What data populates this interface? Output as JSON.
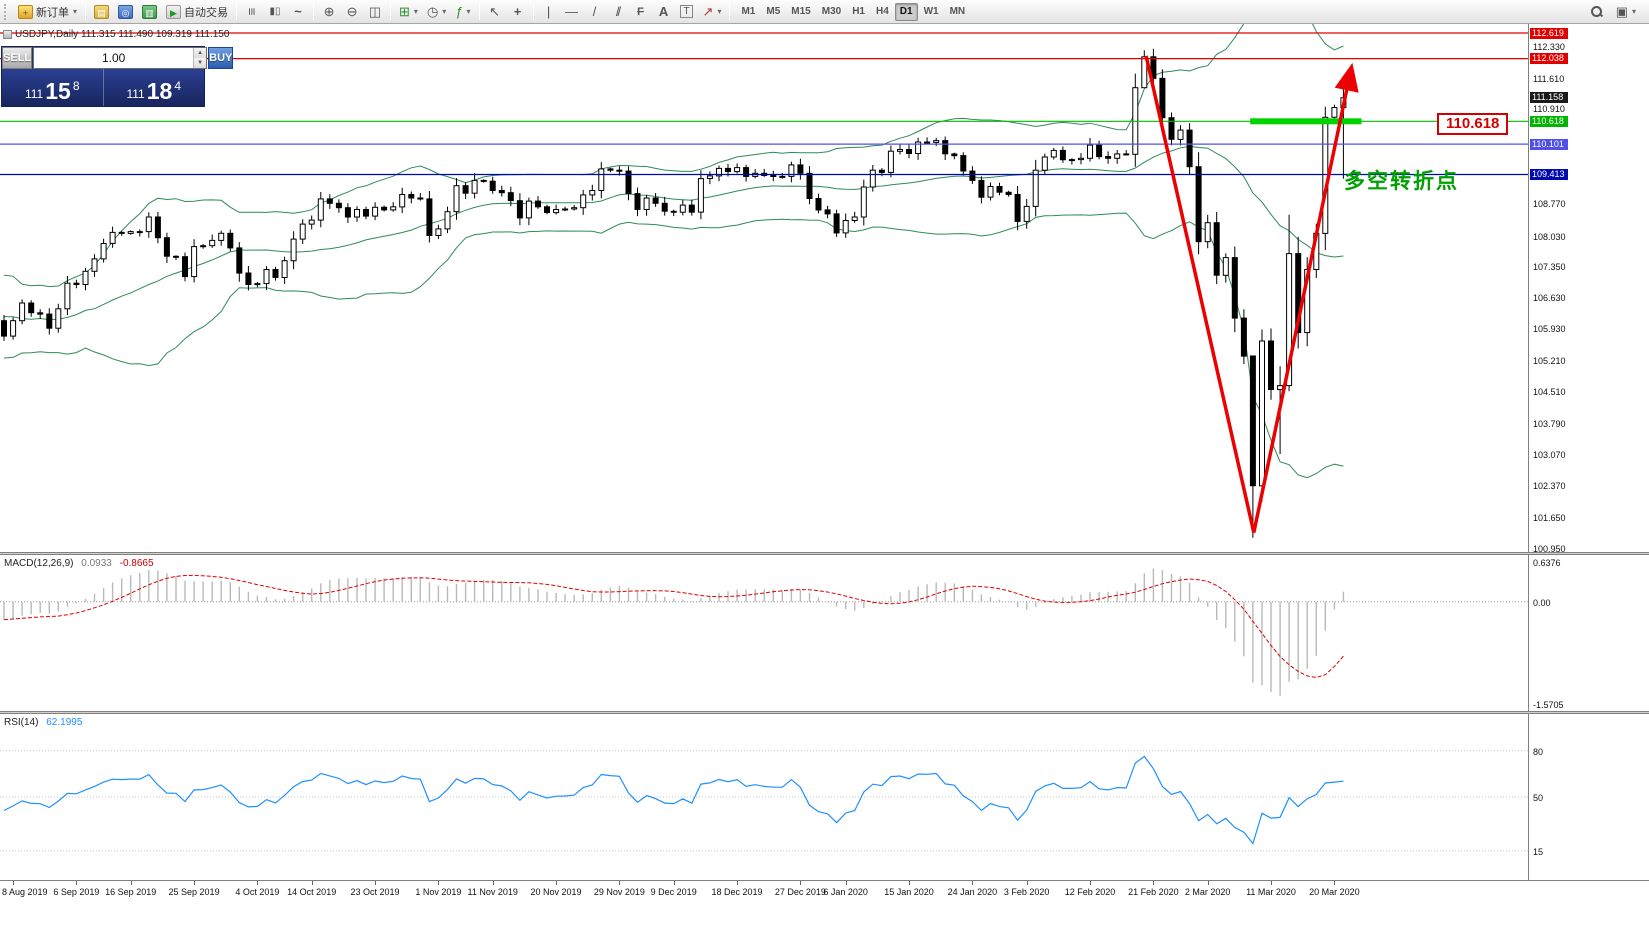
{
  "toolbar": {
    "new_order_label": "新订单",
    "autotrading_label": "自动交易",
    "timeframes": {
      "items": [
        "M1",
        "M5",
        "M15",
        "M30",
        "H1",
        "H4",
        "D1",
        "W1",
        "MN"
      ],
      "active": "D1"
    }
  },
  "chart": {
    "title": "USDJPY,Daily  111.315 111.490 109.319 111.150",
    "symbol": "USDJPY",
    "period": "Daily",
    "open": "111.315",
    "high": "111.490",
    "low": "109.319",
    "close": "111.150"
  },
  "trade_panel": {
    "sell_label": "SELL",
    "buy_label": "BUY",
    "lot": "1.00",
    "sell": {
      "prefix": "111",
      "pips": "15",
      "frac": "8"
    },
    "buy": {
      "prefix": "111",
      "pips": "18",
      "frac": "4"
    }
  },
  "price_axis": {
    "plain": [
      {
        "text": "112.330",
        "price": 112.33
      },
      {
        "text": "111.610",
        "price": 111.61
      },
      {
        "text": "110.910",
        "price": 110.91
      },
      {
        "text": "108.770",
        "price": 108.77
      },
      {
        "text": "108.030",
        "price": 108.03
      },
      {
        "text": "107.350",
        "price": 107.35
      },
      {
        "text": "106.630",
        "price": 106.63
      },
      {
        "text": "105.930",
        "price": 105.93
      },
      {
        "text": "105.210",
        "price": 105.21
      },
      {
        "text": "104.510",
        "price": 104.51
      },
      {
        "text": "103.790",
        "price": 103.79
      },
      {
        "text": "103.070",
        "price": 103.07
      },
      {
        "text": "102.370",
        "price": 102.37
      },
      {
        "text": "101.650",
        "price": 101.65
      },
      {
        "text": "100.950",
        "price": 100.95
      }
    ],
    "boxed": [
      {
        "text": "112.619",
        "price": 112.619,
        "bg": "#e00000"
      },
      {
        "text": "112.038",
        "price": 112.038,
        "bg": "#e00000"
      },
      {
        "text": "111.158",
        "price": 111.158,
        "bg": "#1a1a1a"
      },
      {
        "text": "110.618",
        "price": 110.618,
        "bg": "#00b400"
      },
      {
        "text": "110.101",
        "price": 110.101,
        "bg": "#5050e8"
      },
      {
        "text": "109.413",
        "price": 109.413,
        "bg": "#0008b0"
      }
    ]
  },
  "hlines": [
    {
      "price": 112.619,
      "color": "#e00000"
    },
    {
      "price": 112.038,
      "color": "#e00000"
    },
    {
      "price": 110.618,
      "color": "#00bb00"
    },
    {
      "price": 110.101,
      "color": "#5050e8"
    },
    {
      "price": 109.413,
      "color": "#0008b0"
    }
  ],
  "annotations": {
    "callout": "110.618",
    "cn_text": "多空转折点",
    "highlight": {
      "i1": 137.7,
      "i2": 150,
      "price": 110.618
    },
    "arrow": {
      "pts": [
        [
          126.2,
          112.1
        ],
        [
          138.1,
          101.3
        ],
        [
          148.8,
          111.75
        ]
      ]
    }
  },
  "macd": {
    "label": "MACD(12,26,9)",
    "value_main": "0.0933",
    "value_signal": "-0.8665",
    "axis": [
      "0.6376",
      "0.00",
      "-1.5705"
    ]
  },
  "rsi": {
    "label": "RSI(14)",
    "value": "62.1995",
    "levels": [
      "80",
      "50",
      "15"
    ]
  },
  "date_axis": [
    {
      "text": "8 Aug 2019",
      "i": 1
    },
    {
      "text": "6 Sep 2019",
      "i": 8
    },
    {
      "text": "16 Sep 2019",
      "i": 14
    },
    {
      "text": "25 Sep 2019",
      "i": 21
    },
    {
      "text": "4 Oct 2019",
      "i": 28
    },
    {
      "text": "14 Oct 2019",
      "i": 34
    },
    {
      "text": "23 Oct 2019",
      "i": 41
    },
    {
      "text": "1 Nov 2019",
      "i": 48
    },
    {
      "text": "11 Nov 2019",
      "i": 54
    },
    {
      "text": "20 Nov 2019",
      "i": 61
    },
    {
      "text": "29 Nov 2019",
      "i": 68
    },
    {
      "text": "9 Dec 2019",
      "i": 74
    },
    {
      "text": "18 Dec 2019",
      "i": 81
    },
    {
      "text": "27 Dec 2019",
      "i": 88
    },
    {
      "text": "6 Jan 2020",
      "i": 93
    },
    {
      "text": "15 Jan 2020",
      "i": 100
    },
    {
      "text": "24 Jan 2020",
      "i": 107
    },
    {
      "text": "3 Feb 2020",
      "i": 113
    },
    {
      "text": "12 Feb 2020",
      "i": 120
    },
    {
      "text": "21 Feb 2020",
      "i": 127
    },
    {
      "text": "2 Mar 2020",
      "i": 133
    },
    {
      "text": "11 Mar 2020",
      "i": 140
    },
    {
      "text": "20 Mar 2020",
      "i": 147
    }
  ],
  "chart_data": {
    "type": "candlestick",
    "symbol": "USDJPY",
    "timeframe": "Daily",
    "ylim": [
      100.95,
      112.619
    ],
    "pre_closes": [
      107.3,
      106.58,
      105.92,
      106.42,
      106.24,
      106.08,
      105.68,
      105.31,
      106.73,
      105.88,
      106.12,
      106.35,
      106.62,
      106.21,
      106.58,
      106.41,
      105.39,
      106.1
    ],
    "closes": [
      105.75,
      106.1,
      106.5,
      106.28,
      106.25,
      105.93,
      106.37,
      106.95,
      106.92,
      107.22,
      107.5,
      107.85,
      108.1,
      108.08,
      108.12,
      108.12,
      108.45,
      107.98,
      107.56,
      107.55,
      107.1,
      107.78,
      107.8,
      107.92,
      108.08,
      107.75,
      107.18,
      106.92,
      106.94,
      107.26,
      107.08,
      107.46,
      107.95,
      108.29,
      108.38,
      108.86,
      108.76,
      108.66,
      108.45,
      108.62,
      108.47,
      108.67,
      108.61,
      108.68,
      108.96,
      108.88,
      108.86,
      108.03,
      108.18,
      108.57,
      109.16,
      108.99,
      109.28,
      109.26,
      109.05,
      109.0,
      108.82,
      108.43,
      108.81,
      108.68,
      108.55,
      108.62,
      108.63,
      108.66,
      108.95,
      109.05,
      109.54,
      109.51,
      109.49,
      108.98,
      108.62,
      108.88,
      108.76,
      108.58,
      108.56,
      108.72,
      108.56,
      109.32,
      109.38,
      109.55,
      109.48,
      109.57,
      109.37,
      109.44,
      109.39,
      109.37,
      109.37,
      109.63,
      109.44,
      108.87,
      108.61,
      108.52,
      108.09,
      108.37,
      108.45,
      109.13,
      109.51,
      109.46,
      109.94,
      109.98,
      109.89,
      110.15,
      110.14,
      110.18,
      109.88,
      109.84,
      109.49,
      109.28,
      108.9,
      109.14,
      109.01,
      108.96,
      108.35,
      108.69,
      109.51,
      109.81,
      109.96,
      109.75,
      109.75,
      109.78,
      110.08,
      109.82,
      109.78,
      109.88,
      109.87,
      111.38,
      112.08,
      111.59,
      110.7,
      110.21,
      110.42,
      109.59,
      107.89,
      108.32,
      107.13,
      107.53,
      106.16,
      105.3,
      102.36,
      105.64,
      104.54,
      104.63,
      107.62,
      105.83,
      107.26,
      108.08,
      110.71,
      110.93,
      111.15
    ],
    "wick_overrides": {
      "126": [
        112.23,
        111.46
      ],
      "138": [
        104.6,
        101.18
      ],
      "139": [
        105.9,
        102.0
      ],
      "141": [
        105.07,
        103.08
      ],
      "142": [
        108.5,
        104.5
      ],
      "146": [
        110.95,
        107.7
      ],
      "148": [
        111.49,
        109.32
      ]
    },
    "indicators": {
      "bollinger": {
        "period": 20,
        "deviation": 2
      },
      "macd": [
        12,
        26,
        9
      ],
      "rsi": 14
    }
  }
}
